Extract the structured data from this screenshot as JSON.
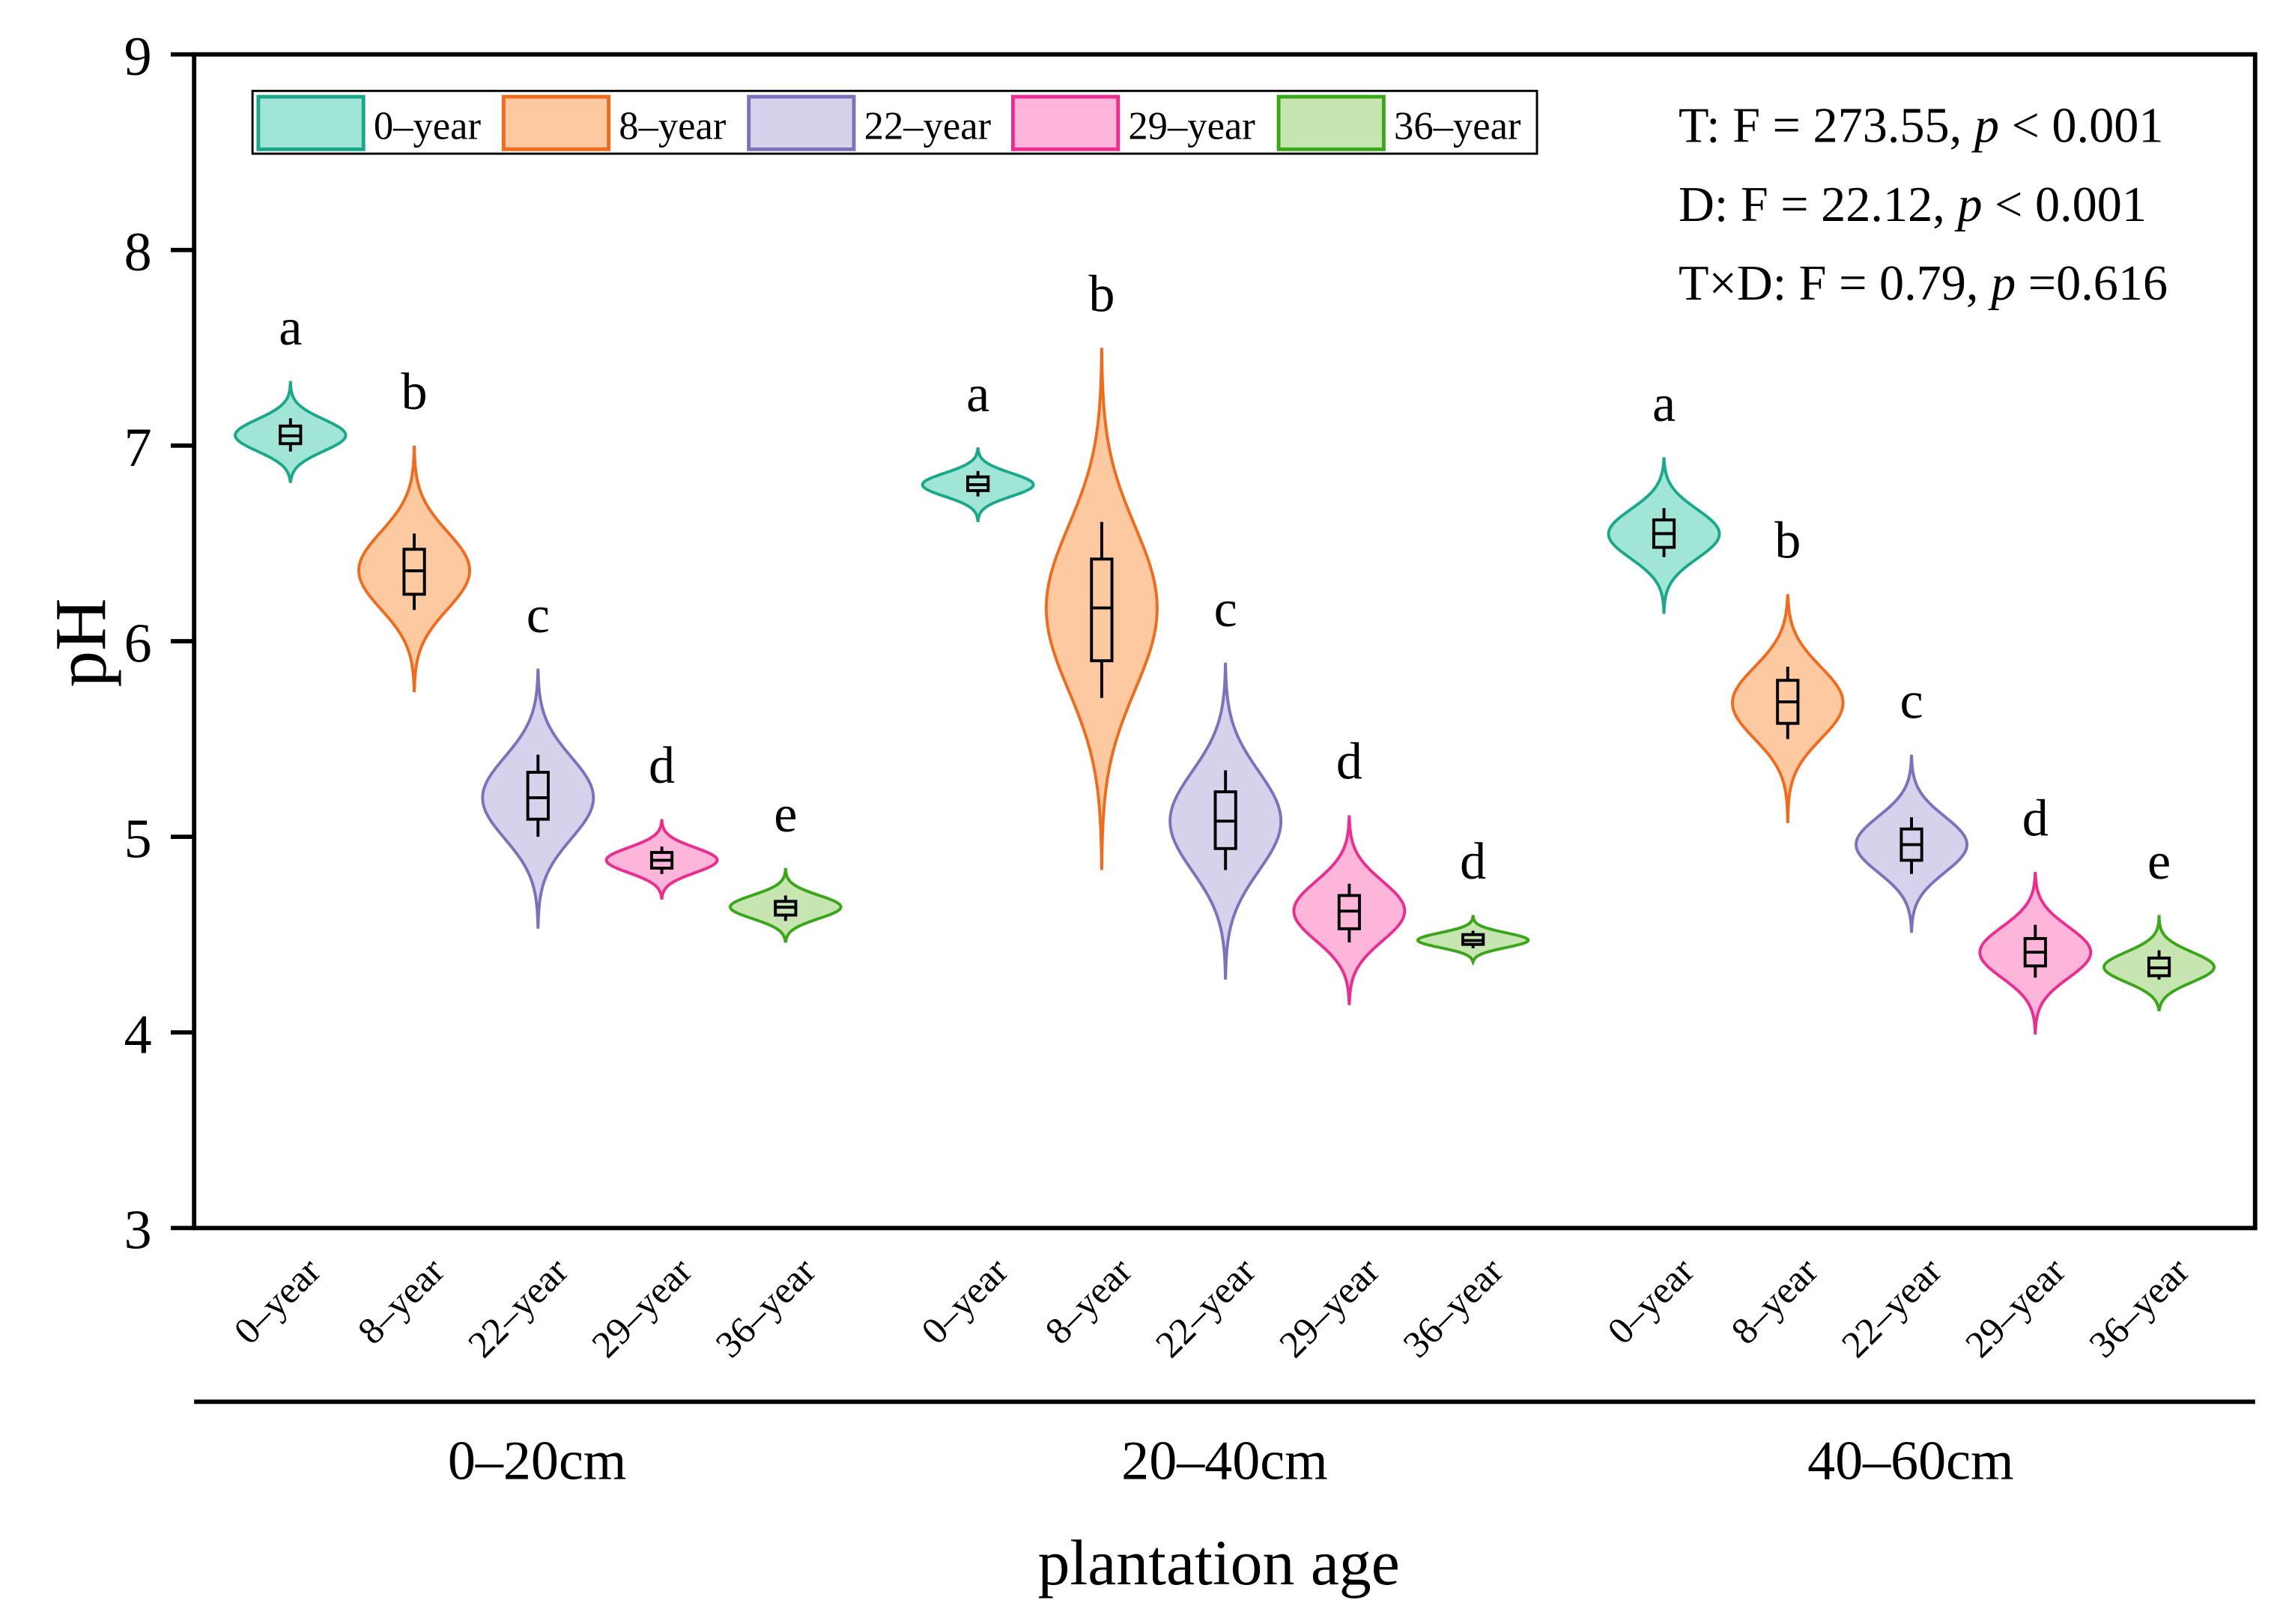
{
  "chart_data": {
    "type": "violin",
    "title": "",
    "xlabel": "plantation age",
    "ylabel": "pH",
    "ylim": [
      3,
      9
    ],
    "yticks": [
      "3",
      "4",
      "5",
      "6",
      "7",
      "8",
      "9"
    ],
    "grid": false,
    "legend_position": "top-left",
    "legend": [
      "0–year",
      "8–year",
      "22–year",
      "29–year",
      "36–year"
    ],
    "colors": {
      "fill": [
        "#a1e5d6",
        "#fdc9a0",
        "#d5d3ec",
        "#fdb5da",
        "#c6e5b1"
      ],
      "stroke": [
        "#1aa88a",
        "#f26b1d",
        "#7b72bb",
        "#ee2b8f",
        "#3aa61a"
      ]
    },
    "annotations": [
      "T: F = 273.55, ",
      "D: F = 22.12, ",
      "T×D: F = 0.79, "
    ],
    "annotation_p": [
      "p",
      " < 0.001",
      " < 0.001",
      " =0.616"
    ],
    "groups": [
      {
        "name": "0–20cm",
        "violins": [
          {
            "label": "0–year",
            "letter": "a",
            "min": 6.81,
            "max": 7.33,
            "q1": 7.01,
            "median": 7.05,
            "q3": 7.1,
            "wlo": 6.97,
            "whi": 7.14
          },
          {
            "label": "8–year",
            "letter": "b",
            "min": 5.74,
            "max": 7.0,
            "q1": 6.24,
            "median": 6.36,
            "q3": 6.47,
            "wlo": 6.16,
            "whi": 6.55
          },
          {
            "label": "22–year",
            "letter": "c",
            "min": 4.53,
            "max": 5.86,
            "q1": 5.09,
            "median": 5.2,
            "q3": 5.33,
            "wlo": 5.0,
            "whi": 5.42
          },
          {
            "label": "29–year",
            "letter": "d",
            "min": 4.68,
            "max": 5.09,
            "q1": 4.84,
            "median": 4.88,
            "q3": 4.92,
            "wlo": 4.81,
            "whi": 4.95
          },
          {
            "label": "36–year",
            "letter": "e",
            "min": 4.46,
            "max": 4.84,
            "q1": 4.6,
            "median": 4.64,
            "q3": 4.67,
            "wlo": 4.57,
            "whi": 4.7
          }
        ]
      },
      {
        "name": "20–40cm",
        "violins": [
          {
            "label": "0–year",
            "letter": "a",
            "min": 6.61,
            "max": 6.99,
            "q1": 6.77,
            "median": 6.8,
            "q3": 6.84,
            "wlo": 6.74,
            "whi": 6.87
          },
          {
            "label": "8–year",
            "letter": "b",
            "min": 4.83,
            "max": 7.5,
            "q1": 5.9,
            "median": 6.17,
            "q3": 6.42,
            "wlo": 5.71,
            "whi": 6.61
          },
          {
            "label": "22–year",
            "letter": "c",
            "min": 4.27,
            "max": 5.89,
            "q1": 4.94,
            "median": 5.08,
            "q3": 5.23,
            "wlo": 4.83,
            "whi": 5.34
          },
          {
            "label": "29–year",
            "letter": "d",
            "min": 4.14,
            "max": 5.11,
            "q1": 4.53,
            "median": 4.62,
            "q3": 4.7,
            "wlo": 4.46,
            "whi": 4.76
          },
          {
            "label": "36–year",
            "letter": "d",
            "min": 4.36,
            "max": 4.6,
            "q1": 4.45,
            "median": 4.47,
            "q3": 4.5,
            "wlo": 4.43,
            "whi": 4.52
          }
        ]
      },
      {
        "name": "40–60cm",
        "violins": [
          {
            "label": "0–year",
            "letter": "a",
            "min": 6.14,
            "max": 6.94,
            "q1": 6.48,
            "median": 6.55,
            "q3": 6.62,
            "wlo": 6.43,
            "whi": 6.68
          },
          {
            "label": "8–year",
            "letter": "b",
            "min": 5.07,
            "max": 6.24,
            "q1": 5.58,
            "median": 5.69,
            "q3": 5.8,
            "wlo": 5.5,
            "whi": 5.87
          },
          {
            "label": "22–year",
            "letter": "c",
            "min": 4.51,
            "max": 5.42,
            "q1": 4.88,
            "median": 4.96,
            "q3": 5.04,
            "wlo": 4.81,
            "whi": 5.1
          },
          {
            "label": "29–year",
            "letter": "d",
            "min": 3.99,
            "max": 4.82,
            "q1": 4.34,
            "median": 4.41,
            "q3": 4.48,
            "wlo": 4.28,
            "whi": 4.55
          },
          {
            "label": "36–year",
            "letter": "e",
            "min": 4.11,
            "max": 4.6,
            "q1": 4.29,
            "median": 4.33,
            "q3": 4.38,
            "wlo": 4.27,
            "whi": 4.42
          }
        ]
      }
    ]
  }
}
